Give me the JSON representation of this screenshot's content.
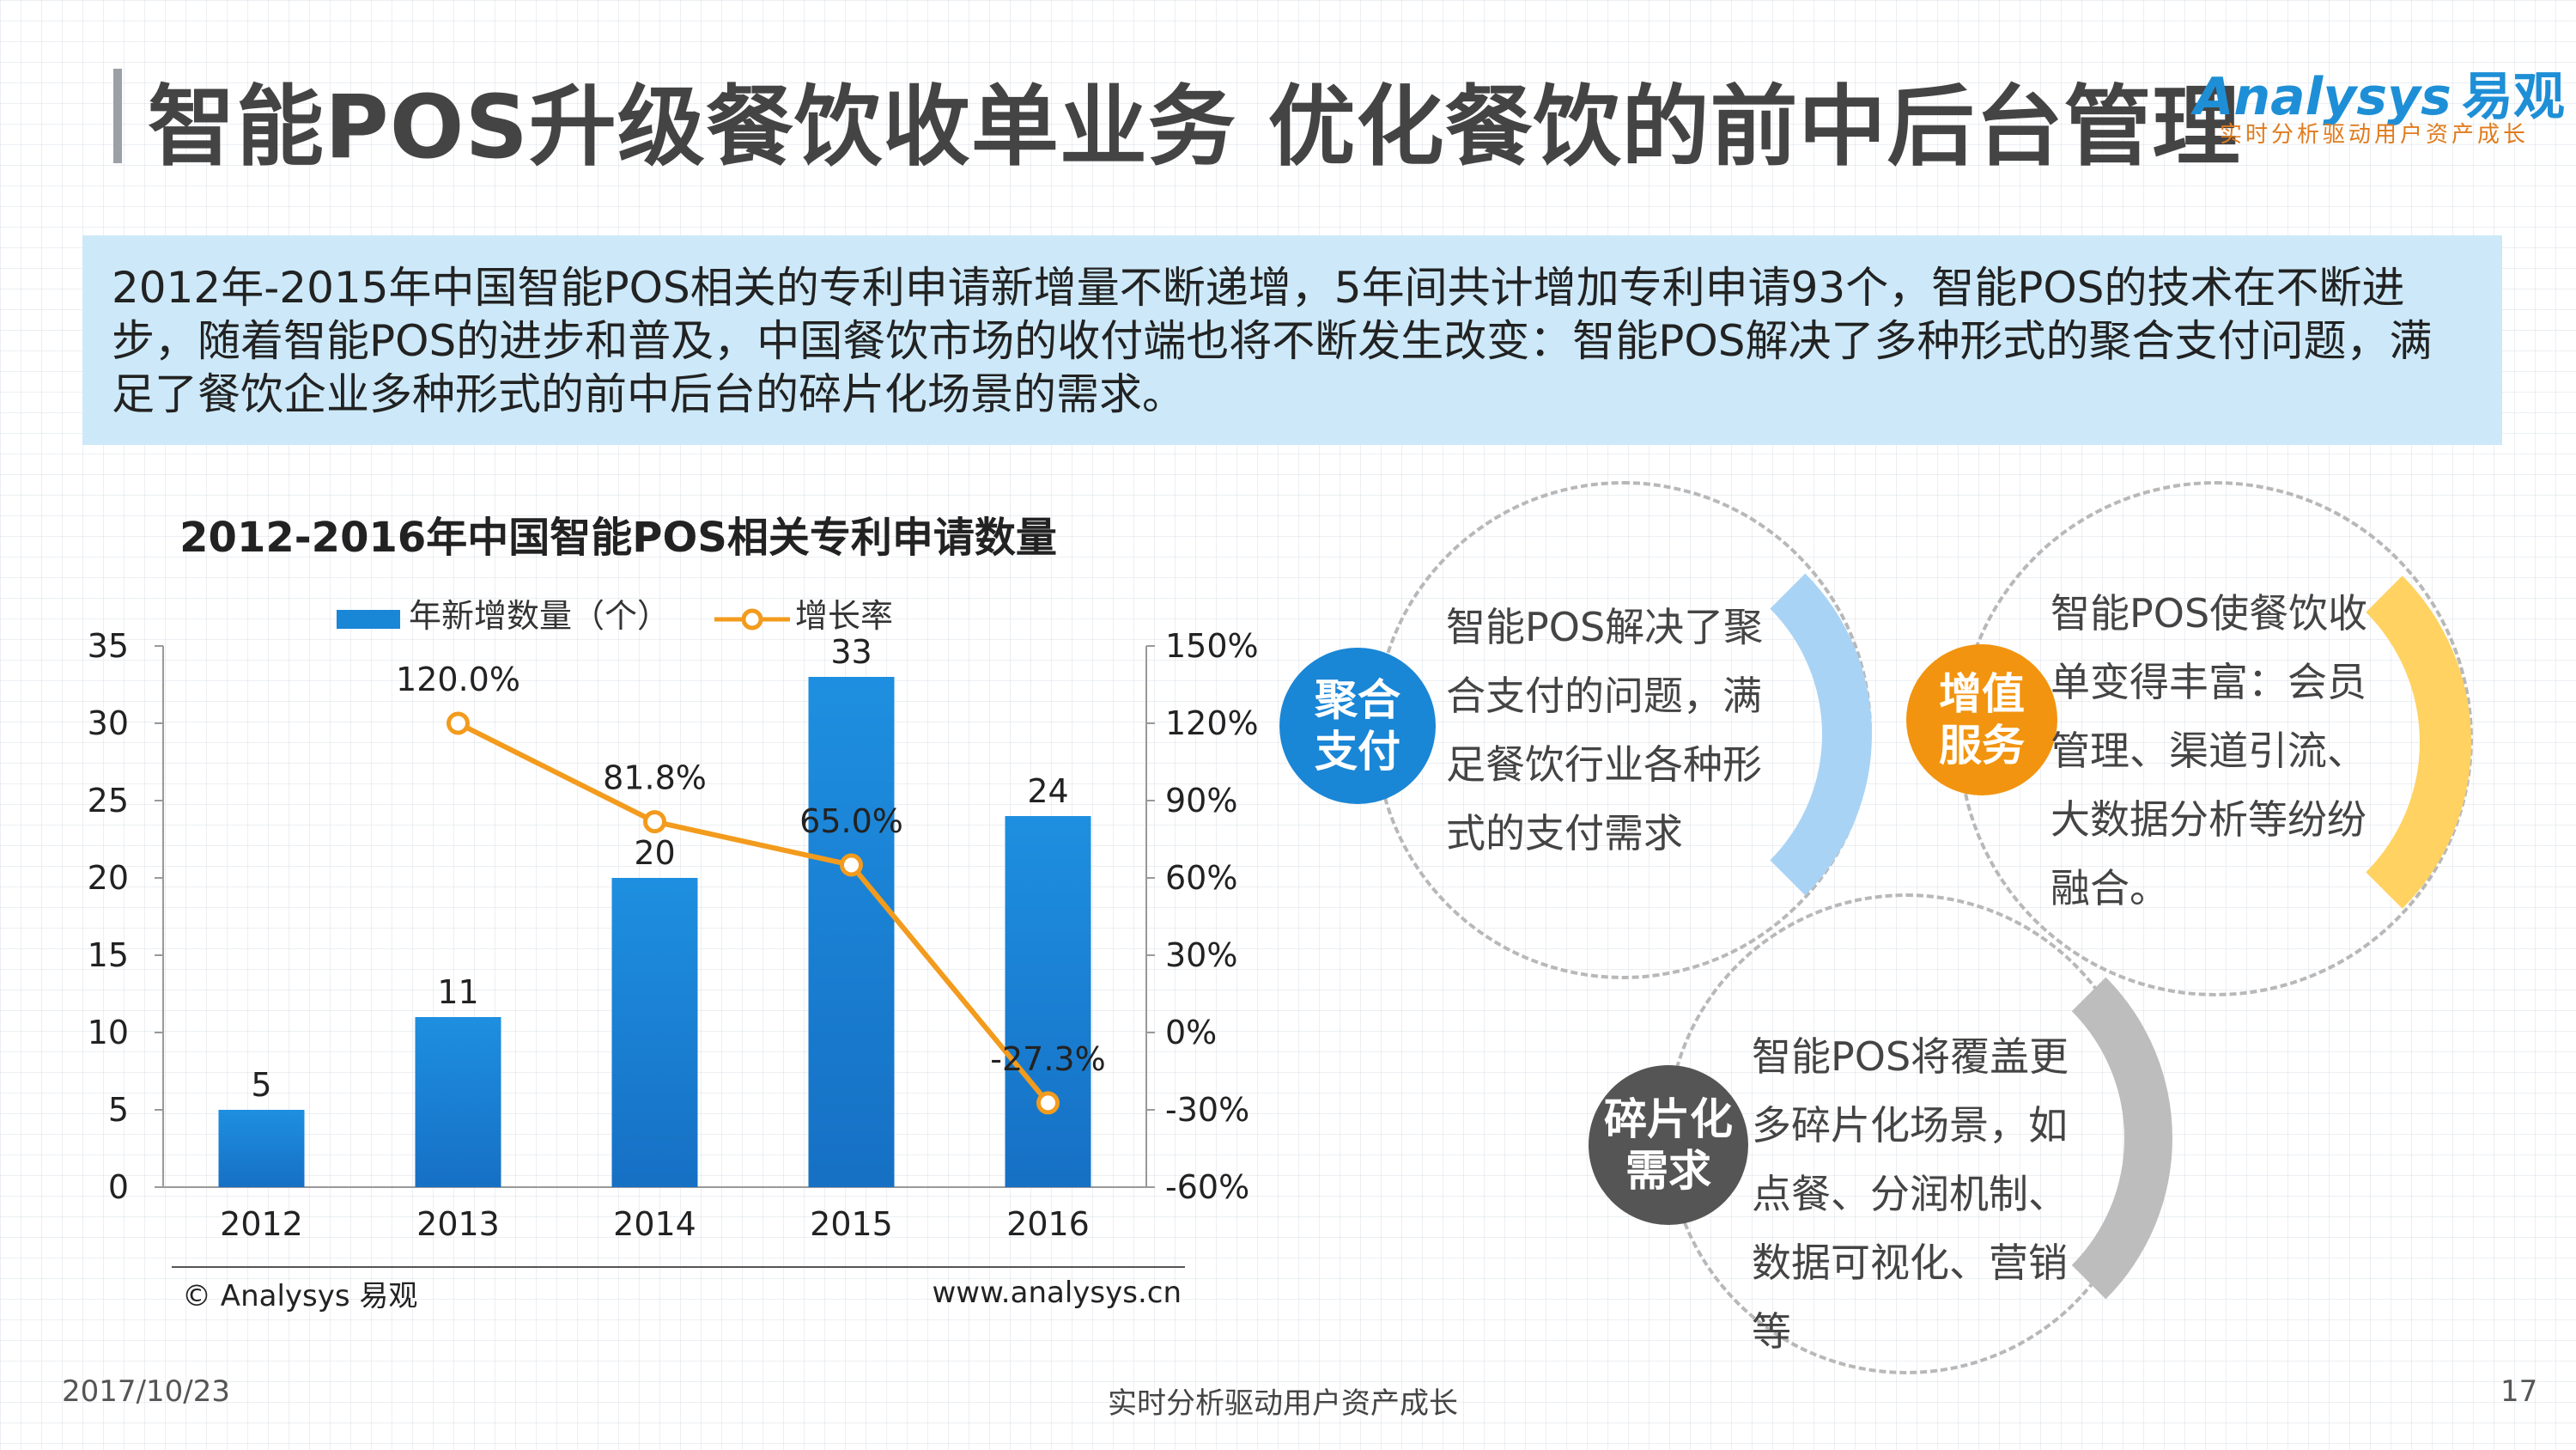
{
  "header": {
    "title": "智能POS升级餐饮收单业务  优化餐饮的前中后台管理",
    "logo_brand": "Analysys",
    "logo_brand_cn": "易观",
    "logo_tagline": "实时分析驱动用户资产成长"
  },
  "summary": {
    "text": "2012年-2015年中国智能POS相关的专利申请新增量不断递增，5年间共计增加专利申请93个，智能POS的技术在不断进步，随着智能POS的进步和普及，中国餐饮市场的收付端也将不断发生改变：智能POS解决了多种形式的聚合支付问题，满足了餐饮企业多种形式的前中后台的碎片化场景的需求。"
  },
  "chart_data": {
    "type": "bar",
    "title": "2012-2016年中国智能POS相关专利申请数量",
    "categories": [
      "2012",
      "2013",
      "2014",
      "2015",
      "2016"
    ],
    "series": [
      {
        "name": "年新增数量（个）",
        "type": "bar",
        "axis": "left",
        "values": [
          5,
          11,
          20,
          33,
          24
        ],
        "labels": [
          "5",
          "11",
          "20",
          "33",
          "24"
        ],
        "color": "#1a86d6"
      },
      {
        "name": "增长率",
        "type": "line",
        "axis": "right",
        "x": [
          "2013",
          "2014",
          "2015",
          "2016"
        ],
        "values": [
          120.0,
          81.8,
          65.0,
          -27.3
        ],
        "labels": [
          "120.0%",
          "81.8%",
          "65.0%",
          "-27.3%"
        ],
        "color": "#f29b1d"
      }
    ],
    "y_left": {
      "range": [
        0,
        35
      ],
      "ticks": [
        "0",
        "5",
        "10",
        "15",
        "20",
        "25",
        "30",
        "35"
      ]
    },
    "y_right": {
      "range": [
        -60,
        150
      ],
      "ticks": [
        "-60%",
        "-30%",
        "0%",
        "30%",
        "60%",
        "90%",
        "120%",
        "150%"
      ]
    },
    "legend_position": "top-center",
    "source": "© Analysys 易观",
    "site": "www.analysys.cn",
    "grid": false
  },
  "circles": [
    {
      "badge": "聚合\n支付",
      "text": "智能POS解决了聚合支付的问题，满足餐饮行业各种形式的支付需求",
      "badge_color": "#1a86d6",
      "arc_color": "#a9d3f5"
    },
    {
      "badge": "增值\n服务",
      "text": "智能POS使餐饮收单变得丰富：会员管理、渠道引流、大数据分析等纷纷融合。",
      "badge_color": "#f2940f",
      "arc_color": "#ffd261"
    },
    {
      "badge": "碎片化\n需求",
      "text": "智能POS将覆盖更多碎片化场景，如点餐、分润机制、数据可视化、营销等",
      "badge_color": "#555555",
      "arc_color": "#bdbdbd"
    }
  ],
  "footer": {
    "date": "2017/10/23",
    "slogan": "实时分析驱动用户资产成长",
    "page": "17"
  }
}
